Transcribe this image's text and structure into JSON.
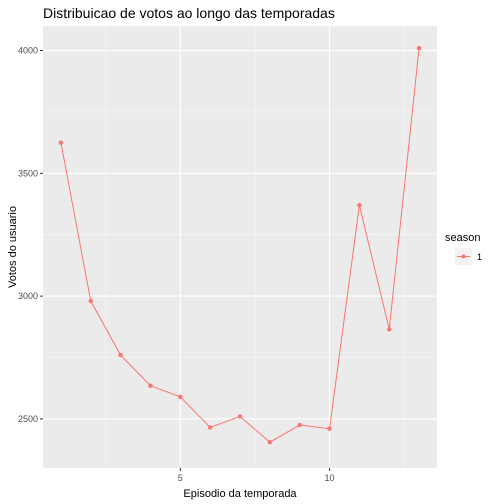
{
  "chart_data": {
    "type": "line",
    "title": "Distribuicao de votos ao longo das temporadas",
    "xlabel": "Episodio da temporada",
    "ylabel": "Votos do usuario",
    "xlim": [
      0.4,
      13.6
    ],
    "ylim": [
      2300,
      4100
    ],
    "xticks": [
      5,
      10
    ],
    "xtick_labels": [
      "5",
      "10"
    ],
    "yticks": [
      2500,
      3000,
      3500,
      4000
    ],
    "ytick_labels": [
      "2500",
      "3000",
      "3500",
      "4000"
    ],
    "grid": true,
    "legend": {
      "title": "season",
      "placement": "right"
    },
    "series": [
      {
        "name": "1",
        "color": "#F8766D",
        "x": [
          1,
          2,
          3,
          4,
          5,
          6,
          7,
          8,
          9,
          10,
          11,
          12,
          13
        ],
        "y": [
          3625,
          2980,
          2760,
          2635,
          2590,
          2465,
          2510,
          2405,
          2475,
          2460,
          3370,
          2865,
          4010
        ]
      }
    ]
  },
  "colors": {
    "panel_background": "#EBEBEB",
    "grid_major": "#FFFFFF",
    "series": "#F8766D"
  }
}
